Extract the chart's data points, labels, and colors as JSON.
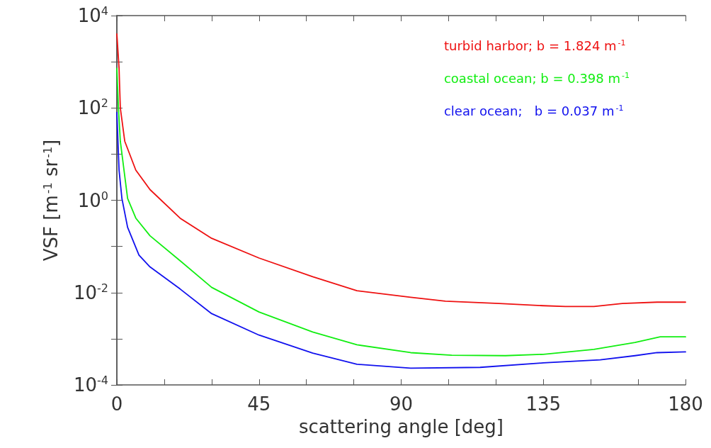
{
  "chart_data": {
    "type": "line",
    "xlabel": "scattering angle [deg]",
    "ylabel": "VSF [m$^{-1}$ sr$^{-1}$]",
    "log": "y",
    "grid": false,
    "legend": "top right",
    "marker": "none",
    "line_style": "solid",
    "xlim": [
      0,
      180
    ],
    "ylim": [
      0.0001,
      10000
    ],
    "xticks": [
      0,
      {
        "value": 15,
        "label": null
      },
      {
        "value": 30,
        "label": null
      },
      45,
      {
        "value": 60,
        "label": null
      },
      {
        "value": 75,
        "label": null
      },
      90,
      {
        "value": 105,
        "label": null
      },
      {
        "value": 120,
        "label": null
      },
      135,
      {
        "value": 150,
        "label": null
      },
      {
        "value": 165,
        "label": null
      },
      180
    ],
    "yticks": [
      {
        "value": 0.0001,
        "label": "10$^{-4}$"
      },
      {
        "value": 0.001,
        "label": null
      },
      {
        "value": 0.01,
        "label": "10$^{-2}$"
      },
      {
        "value": 0.1,
        "label": null
      },
      {
        "value": 1,
        "label": "10$^{0}$"
      },
      {
        "value": 10,
        "label": null
      },
      {
        "value": 100,
        "label": "10$^{2}$"
      },
      {
        "value": 1000,
        "label": null
      },
      {
        "value": 10000,
        "label": "10$^{4}$"
      }
    ],
    "series": [
      {
        "name": "turbid harbor; b = 1.824 m$^{-1}$",
        "color": "#ee1111",
        "x": [
          0,
          0.7,
          1.1,
          2.5,
          6,
          10.5,
          20,
          30,
          45,
          62,
          76,
          93,
          104,
          121,
          135,
          142,
          151,
          160,
          171,
          180
        ],
        "values": [
          4000,
          720,
          100,
          19,
          4.5,
          1.7,
          0.41,
          0.15,
          0.056,
          0.022,
          0.011,
          0.0079,
          0.0065,
          0.0058,
          0.0052,
          0.005,
          0.005,
          0.0058,
          0.0062,
          0.0062
        ]
      },
      {
        "name": "coastal ocean; b = 0.398 m$^{-1}$",
        "color": "#11ee11",
        "x": [
          0,
          0.5,
          1.1,
          3.4,
          6,
          10.5,
          20,
          30,
          45,
          62,
          76,
          93,
          106,
          123,
          135,
          151,
          164,
          172,
          180
        ],
        "values": [
          720,
          100,
          19,
          1.1,
          0.41,
          0.17,
          0.049,
          0.013,
          0.0038,
          0.0014,
          0.00074,
          0.0005,
          0.00044,
          0.00043,
          0.00046,
          0.00059,
          0.00083,
          0.0011,
          0.0011
        ]
      },
      {
        "name": "clear ocean;   b = 0.037 m$^{-1}$",
        "color": "#1111ee",
        "x": [
          0,
          0.7,
          1.6,
          3.4,
          7,
          10.5,
          20,
          30,
          45,
          62,
          76,
          93,
          115,
          135,
          153,
          164,
          171,
          180
        ],
        "values": [
          80,
          4.5,
          1.1,
          0.26,
          0.065,
          0.036,
          0.012,
          0.0035,
          0.0012,
          0.00049,
          0.00028,
          0.00023,
          0.00024,
          0.0003,
          0.00035,
          0.00043,
          0.0005,
          0.00052
        ]
      }
    ]
  }
}
